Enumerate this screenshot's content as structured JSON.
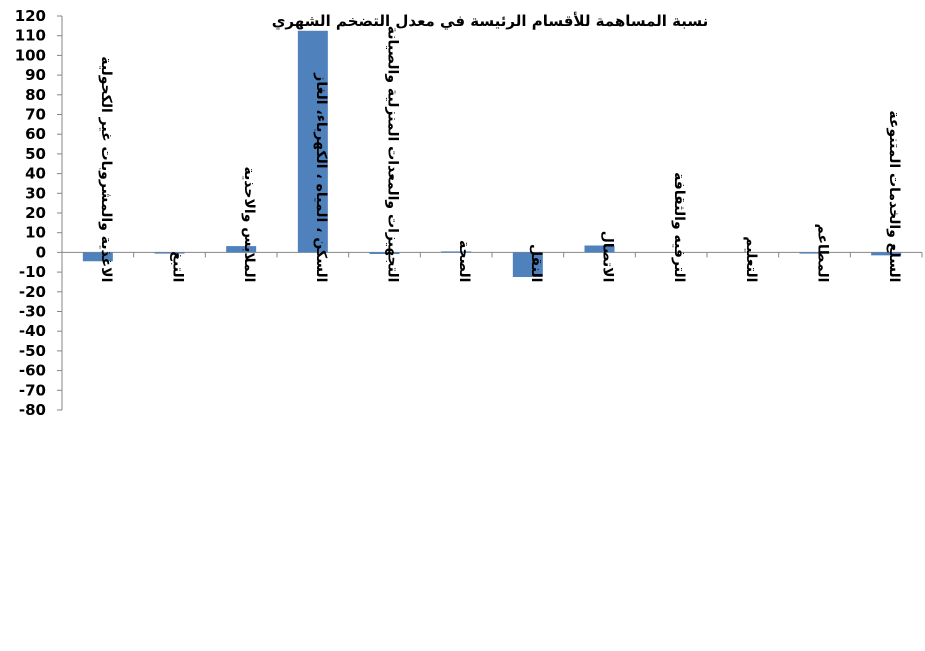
{
  "chart_data": {
    "type": "bar",
    "title": "نسبة المساهمة للأقسام الرئيسة في معدل التضخم الشهري",
    "xlabel": "",
    "ylabel": "",
    "ylim": [
      -80,
      120
    ],
    "yticks": [
      120,
      110,
      100,
      90,
      80,
      70,
      60,
      50,
      40,
      30,
      20,
      10,
      0,
      -10,
      -20,
      -30,
      -40,
      -50,
      -60,
      -70,
      -80
    ],
    "grid": false,
    "legend": "none",
    "bar_color": "#4f81bd",
    "categories": [
      "الاغذية والمشروبات غير الكحولية",
      "التبغ",
      "الملابس والاحذية",
      "السكن ، المياه ، الكهرباء، الغاز",
      "التجهيزات والمعدات المنزلية والصيانة",
      "الصحة",
      "النقل",
      "الاتصال",
      "الترفيه والثقافة",
      "التعليم",
      "المطاعم",
      "السلع والخدمات المتنوعة"
    ],
    "values": [
      -4.5,
      -0.5,
      3.2,
      112.5,
      -0.8,
      0.5,
      -12.5,
      3.5,
      0,
      0,
      -0.5,
      -1.5
    ]
  }
}
